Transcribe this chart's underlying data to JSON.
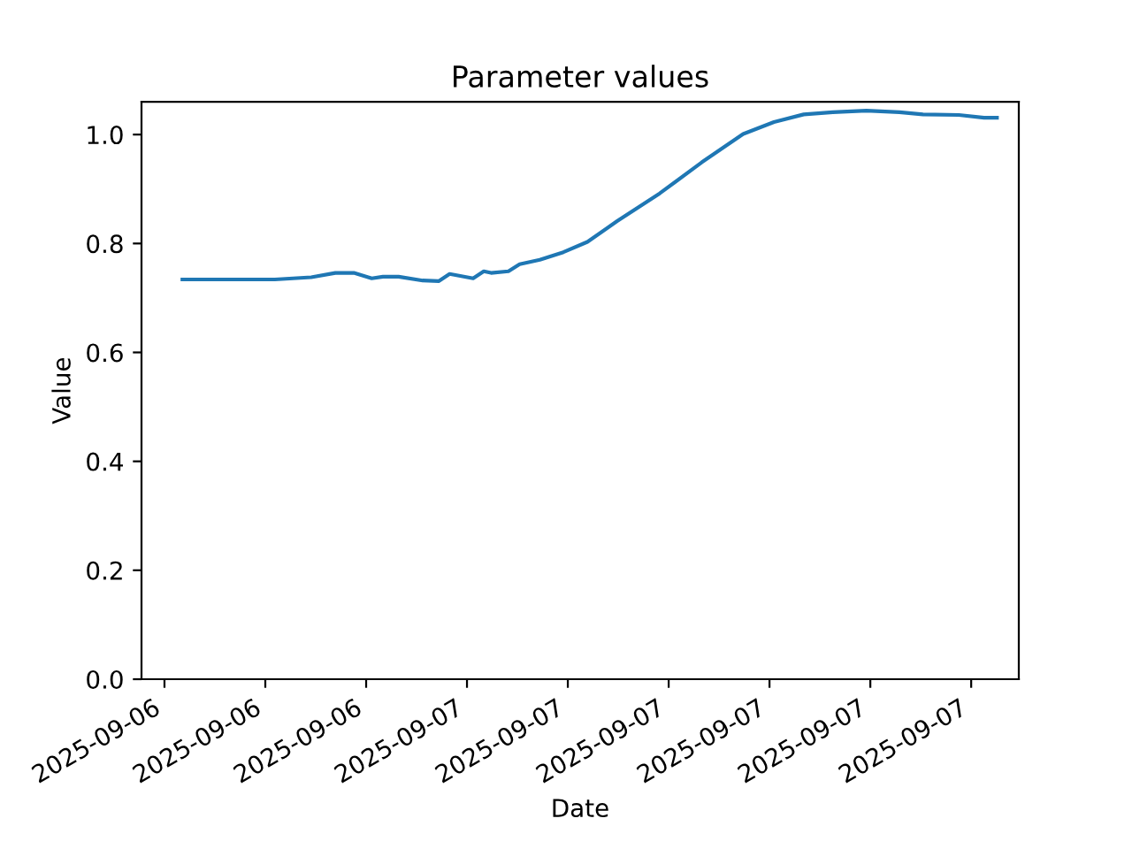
{
  "chart_data": {
    "type": "line",
    "title": "Parameter values",
    "xlabel": "Date",
    "ylabel": "Value",
    "series": [
      {
        "color": "#1f77b4",
        "x": [
          "2025-09-06T15:32",
          "2025-09-06T18:17",
          "2025-09-06T19:22",
          "2025-09-06T20:05",
          "2025-09-06T20:38",
          "2025-09-06T21:10",
          "2025-09-06T21:30",
          "2025-09-06T21:58",
          "2025-09-06T22:41",
          "2025-09-06T23:10",
          "2025-09-06T23:29",
          "2025-09-07T00:11",
          "2025-09-07T00:30",
          "2025-09-07T00:43",
          "2025-09-07T01:14",
          "2025-09-07T01:34",
          "2025-09-07T02:10",
          "2025-09-07T02:52",
          "2025-09-07T03:35",
          "2025-09-07T04:28",
          "2025-09-07T05:44",
          "2025-09-07T06:59",
          "2025-09-07T08:13",
          "2025-09-07T09:08",
          "2025-09-07T10:01",
          "2025-09-07T10:53",
          "2025-09-07T11:53",
          "2025-09-07T12:52",
          "2025-09-07T13:34",
          "2025-09-07T14:38",
          "2025-09-07T15:23",
          "2025-09-07T15:46"
        ],
        "values": [
          0.734,
          0.734,
          0.738,
          0.746,
          0.746,
          0.736,
          0.739,
          0.739,
          0.732,
          0.731,
          0.744,
          0.736,
          0.749,
          0.746,
          0.749,
          0.762,
          0.77,
          0.784,
          0.803,
          0.841,
          0.892,
          0.949,
          1.001,
          1.023,
          1.037,
          1.041,
          1.044,
          1.041,
          1.037,
          1.036,
          1.031,
          1.031
        ]
      }
    ],
    "xlim": [
      "2025-09-06T14:19",
      "2025-09-07T16:25"
    ],
    "xticks": [
      {
        "value": "2025-09-06T15:00",
        "label": "2025-09-06"
      },
      {
        "value": "2025-09-06T18:00",
        "label": "2025-09-06"
      },
      {
        "value": "2025-09-06T21:00",
        "label": "2025-09-06"
      },
      {
        "value": "2025-09-07T00:00",
        "label": "2025-09-07"
      },
      {
        "value": "2025-09-07T03:00",
        "label": "2025-09-07"
      },
      {
        "value": "2025-09-07T06:00",
        "label": "2025-09-07"
      },
      {
        "value": "2025-09-07T09:00",
        "label": "2025-09-07"
      },
      {
        "value": "2025-09-07T12:00",
        "label": "2025-09-07"
      },
      {
        "value": "2025-09-07T15:00",
        "label": "2025-09-07"
      }
    ],
    "ylim": [
      0,
      1.06
    ],
    "yticks": [
      {
        "value": 0,
        "label": "0.0"
      },
      {
        "value": 0.2,
        "label": "0.2"
      },
      {
        "value": 0.4,
        "label": "0.4"
      },
      {
        "value": 0.6,
        "label": "0.6"
      },
      {
        "value": 0.8,
        "label": "0.8"
      },
      {
        "value": 1.0,
        "label": "1.0"
      }
    ],
    "grid": false,
    "legend": false,
    "marker": "none",
    "line_style": "solid"
  }
}
